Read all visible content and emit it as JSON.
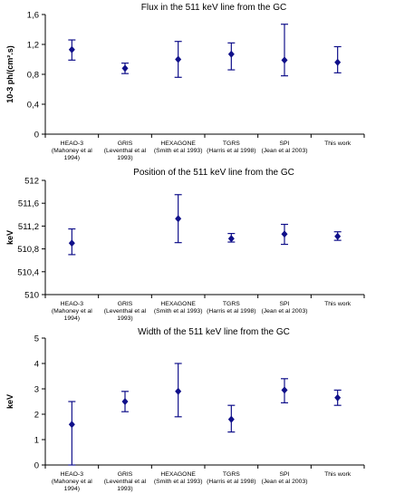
{
  "colors": {
    "marker": "#10108a",
    "axis": "#000000"
  },
  "chart_data": [
    {
      "type": "scatter",
      "title": "Flux in the  511 keV line from the GC",
      "ylabel": "10-3 ph/(cm².s)",
      "ylim": [
        0,
        1.6
      ],
      "yticks": [
        "0",
        "0,4",
        "0,8",
        "1,2",
        "1,6"
      ],
      "categories": [
        [
          "HEAO-3",
          "(Mahoney et al",
          "1994)"
        ],
        [
          "GRIS",
          "(Leventhal et al",
          "1993)"
        ],
        [
          "HEXAGONE",
          "(Smith et al 1993)"
        ],
        [
          "TGRS",
          "(Harris et al 1998)"
        ],
        [
          "SPI",
          "(Jean et al 2003)"
        ],
        [
          "This work"
        ]
      ],
      "values": [
        1.13,
        0.88,
        1.0,
        1.07,
        0.99,
        0.96
      ],
      "lower": [
        0.99,
        0.81,
        0.76,
        0.86,
        0.78,
        0.82
      ],
      "upper": [
        1.26,
        0.95,
        1.24,
        1.22,
        1.47,
        1.17
      ],
      "grid": false
    },
    {
      "type": "scatter",
      "title": "Position of the  511 keV line from the GC",
      "ylabel": "keV",
      "ylim": [
        510,
        512
      ],
      "yticks": [
        "510",
        "510,4",
        "510,8",
        "511,2",
        "511,6",
        "512"
      ],
      "categories": [
        [
          "HEAO-3",
          "(Mahoney et al",
          "1994)"
        ],
        [
          "GRIS",
          "(Leventhal et al",
          "1993)"
        ],
        [
          "HEXAGONE",
          "(Smith et al 1993)"
        ],
        [
          "TGRS",
          "(Harris et al 1998)"
        ],
        [
          "SPI",
          "(Jean et al 2003)"
        ],
        [
          "This work"
        ]
      ],
      "values": [
        510.9,
        null,
        511.33,
        510.98,
        511.06,
        511.02
      ],
      "lower": [
        510.7,
        null,
        510.91,
        510.92,
        510.88,
        510.95
      ],
      "upper": [
        511.15,
        null,
        511.75,
        511.07,
        511.23,
        511.1
      ],
      "grid": false
    },
    {
      "type": "scatter",
      "title": "Width of the  511 keV line from the GC",
      "ylabel": "keV",
      "ylim": [
        0,
        5
      ],
      "yticks": [
        "0",
        "1",
        "2",
        "3",
        "4",
        "5"
      ],
      "categories": [
        [
          "HEAO-3",
          "(Mahoney et al",
          "1994)"
        ],
        [
          "GRIS",
          "(Leventhal et al",
          "1993)"
        ],
        [
          "HEXAGONE",
          "(Smith et al 1993)"
        ],
        [
          "TGRS",
          "(Harris et al 1998)"
        ],
        [
          "SPI",
          "(Jean et al 2003)"
        ],
        [
          "This work"
        ]
      ],
      "values": [
        1.6,
        2.5,
        2.9,
        1.8,
        2.95,
        2.65
      ],
      "lower": [
        0,
        2.1,
        1.9,
        1.3,
        2.45,
        2.35
      ],
      "upper": [
        2.5,
        2.9,
        4.0,
        2.35,
        3.4,
        2.95
      ],
      "grid": false
    }
  ]
}
